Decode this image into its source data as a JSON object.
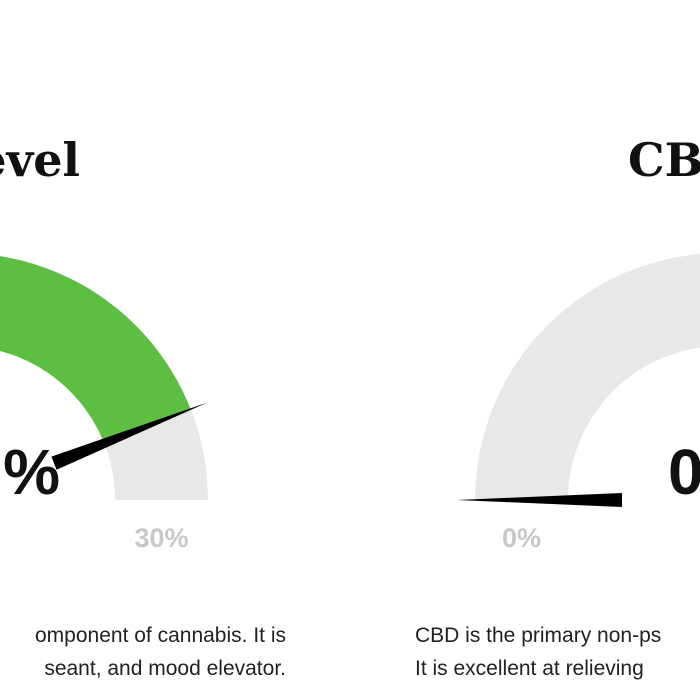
{
  "gauges": [
    {
      "title": "evel",
      "value": 26.4,
      "value_text": "%",
      "range": [
        0,
        30
      ],
      "end_label": {
        "value": 30,
        "label": "30%"
      },
      "color": "#5cbf42",
      "text": [
        "omponent of cannabis. It is",
        "seant, and mood elevator."
      ]
    },
    {
      "title": "CB",
      "value": 0,
      "value_text": "0",
      "range": [
        0,
        30
      ],
      "end_label": {
        "value": 0,
        "label": "0%"
      },
      "color": "#5cbf42",
      "text": [
        "CBD is the primary non-ps",
        "It is excellent at relieving"
      ]
    }
  ]
}
